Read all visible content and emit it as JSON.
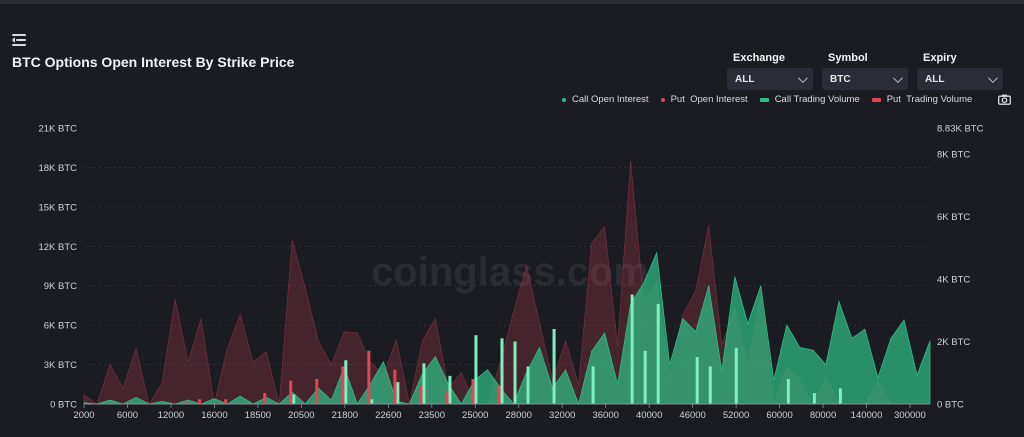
{
  "header": {
    "title": "BTC Options Open Interest By Strike Price"
  },
  "filters": [
    {
      "label": "Exchange",
      "value": "ALL"
    },
    {
      "label": "Symbol",
      "value": "BTC"
    },
    {
      "label": "Expiry",
      "value": "ALL"
    }
  ],
  "watermark": "coinglass.com",
  "colors": {
    "call": "#2ebd85",
    "put": "#e04558",
    "background": "#1b1c22"
  },
  "chart_data": {
    "type": "bar",
    "legend": [
      {
        "name": "Call Open Interest",
        "kind": "area",
        "color": "#2ebd85"
      },
      {
        "name": "Put  Open Interest",
        "kind": "area",
        "color": "#e04558"
      },
      {
        "name": "Call Trading Volume",
        "kind": "bar",
        "color": "#2ebd85"
      },
      {
        "name": "Put  Trading Volume",
        "kind": "bar",
        "color": "#e04558"
      }
    ],
    "legend_position": "top-right",
    "y_left": {
      "ticks": [
        "0 BTC",
        "3K BTC",
        "6K BTC",
        "9K BTC",
        "12K BTC",
        "15K BTC",
        "18K BTC",
        "21K BTC"
      ],
      "range": [
        0,
        21000
      ]
    },
    "y_right": {
      "ticks": [
        "0 BTC",
        "2K BTC",
        "4K BTC",
        "6K BTC",
        "8K BTC",
        "8.83K BTC"
      ],
      "range": [
        0,
        8830
      ]
    },
    "x_tick_labels": [
      "2000",
      "6000",
      "12000",
      "16000",
      "18500",
      "20500",
      "21800",
      "22600",
      "23500",
      "25000",
      "28000",
      "32000",
      "36000",
      "40000",
      "46000",
      "52000",
      "60000",
      "80000",
      "140000",
      "300000"
    ],
    "categories_count": 66,
    "call_open_interest": [
      100,
      0,
      300,
      0,
      500,
      0,
      200,
      0,
      300,
      0,
      400,
      0,
      600,
      0,
      500,
      0,
      900,
      0,
      1200,
      300,
      2800,
      0,
      1500,
      3200,
      200,
      0,
      2300,
      3600,
      1500,
      0,
      1800,
      2600,
      1200,
      0,
      2400,
      4300,
      1200,
      2600,
      0,
      4000,
      5400,
      1500,
      7600,
      9200,
      11500,
      3000,
      6500,
      5500,
      9000,
      2500,
      9700,
      6100,
      9000,
      1800,
      6000,
      4300,
      4100,
      3000,
      7800,
      5000,
      5700,
      2000,
      5000,
      6400,
      2200,
      4800
    ],
    "put_open_interest": [
      700,
      0,
      3000,
      1200,
      4200,
      0,
      1600,
      8000,
      3200,
      6500,
      0,
      4200,
      6800,
      3200,
      4000,
      0,
      12500,
      8800,
      4800,
      3000,
      5500,
      5400,
      3200,
      2200,
      4900,
      0,
      4800,
      6500,
      1200,
      2400,
      0,
      0,
      3200,
      7000,
      10500,
      6200,
      1800,
      4800,
      1500,
      12200,
      13500,
      4400,
      18500,
      7800,
      9200,
      2000,
      6800,
      8600,
      13600,
      4500,
      7300,
      2900,
      8200,
      0,
      2800,
      1800,
      0,
      2000,
      0,
      0,
      0,
      1700,
      0,
      0,
      0,
      0
    ],
    "call_trading_volume": [
      0,
      0,
      0,
      0,
      0,
      0,
      0,
      0,
      0,
      0,
      0,
      0,
      0,
      0,
      0,
      0,
      300,
      0,
      0,
      0,
      1400,
      0,
      150,
      0,
      700,
      0,
      1300,
      0,
      900,
      0,
      2200,
      0,
      2100,
      2000,
      1200,
      0,
      2400,
      0,
      0,
      1200,
      0,
      0,
      3500,
      1700,
      3200,
      0,
      0,
      1500,
      1200,
      0,
      1800,
      0,
      0,
      0,
      800,
      0,
      350,
      0,
      500,
      0,
      0,
      0,
      0,
      0,
      0,
      0
    ],
    "put_trading_volume": [
      0,
      0,
      0,
      0,
      0,
      0,
      0,
      0,
      100,
      150,
      0,
      150,
      0,
      0,
      350,
      0,
      750,
      0,
      800,
      0,
      1200,
      0,
      1700,
      0,
      1100,
      0,
      600,
      0,
      400,
      0,
      800,
      0,
      600,
      0,
      0,
      0,
      0,
      0,
      0,
      0,
      0,
      0,
      0,
      0,
      0,
      0,
      0,
      0,
      0,
      0,
      0,
      0,
      0,
      0,
      0,
      0,
      0,
      0,
      0,
      0,
      0,
      0,
      0,
      0,
      0,
      0
    ]
  }
}
